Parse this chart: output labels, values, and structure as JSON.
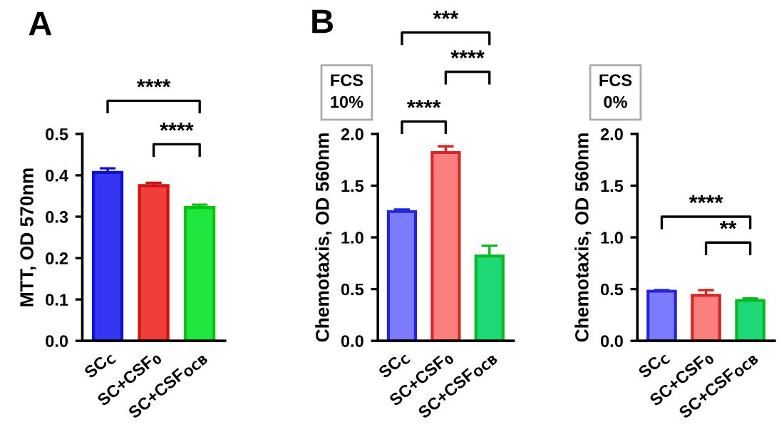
{
  "chart_data": [
    {
      "type": "bar",
      "title": "A",
      "ylabel": "MTT, OD 570nm",
      "categories": [
        "SC$_{C}$",
        "SC+CSF$_{0}$",
        "SC+CSF$_{OCB}$"
      ],
      "values": [
        0.407,
        0.375,
        0.322
      ],
      "errors": [
        [
          0.407,
          0.417
        ],
        [
          0.375,
          0.382
        ],
        [
          0.322,
          0.329
        ]
      ],
      "colors": [
        "#3535f2",
        "#f23d3d",
        "#1fe63f"
      ],
      "ylim": [
        0,
        0.5
      ],
      "yticks": [
        {
          "value": 0,
          "label": "0.0"
        },
        0.1,
        0.2,
        0.3,
        0.4,
        0.5
      ],
      "grid": false,
      "annotations": [
        "****",
        "****"
      ]
    },
    {
      "type": "bar",
      "title": "B",
      "ylabel": "Chemotaxis, OD 560nm",
      "categories": [
        "SC$_{C}$",
        "SC+CSF$_{0}$",
        "SC+CSF$_{OCB}$"
      ],
      "values": [
        1.25,
        1.82,
        0.82
      ],
      "errors": [
        [
          1.25,
          1.27
        ],
        [
          1.82,
          1.88
        ],
        [
          0.82,
          0.92
        ]
      ],
      "colors": [
        "#7b7bfb",
        "#fb7f7f",
        "#1ed876"
      ],
      "ylim": [
        0,
        2.0
      ],
      "yticks": [
        {
          "value": 0,
          "label": "0.0"
        },
        0.5,
        {
          "value": 1,
          "label": "1.0"
        },
        1.5,
        {
          "value": 2,
          "label": "2.0"
        }
      ],
      "grid": false,
      "annotations": [
        "FCS\n10%",
        "***",
        "****",
        "****"
      ]
    },
    {
      "type": "bar",
      "ylabel": "Chemotaxis, OD 560nm",
      "categories": [
        "SC$_{C}$",
        "SC+CSF$_{0}$",
        "SC+CSF$_{OCB}$"
      ],
      "values": [
        0.48,
        0.44,
        0.39
      ],
      "errors": [
        [
          0.48,
          0.49
        ],
        [
          0.44,
          0.49
        ],
        [
          0.39,
          0.41
        ]
      ],
      "colors": [
        "#7b7bfb",
        "#fb7f7f",
        "#1ed876"
      ],
      "ylim": [
        0,
        2.0
      ],
      "yticks": [
        {
          "value": 0,
          "label": "0.0"
        },
        0.5,
        {
          "value": 1,
          "label": "1.0"
        },
        1.5,
        {
          "value": 2,
          "label": "2.0"
        }
      ],
      "grid": false,
      "annotations": [
        "FCS\n0%",
        "****",
        "**"
      ]
    }
  ]
}
